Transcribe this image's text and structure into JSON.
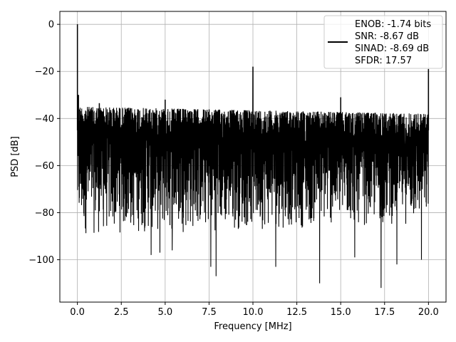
{
  "chart_data": {
    "type": "line",
    "title": "",
    "xlabel": "Frequency [MHz]",
    "ylabel": "PSD [dB]",
    "xlim": [
      -1,
      21
    ],
    "ylim": [
      -118,
      5.5
    ],
    "xticks": [
      0.0,
      2.5,
      5.0,
      7.5,
      10.0,
      12.5,
      15.0,
      17.5,
      20.0
    ],
    "xtick_labels": [
      "0.0",
      "2.5",
      "5.0",
      "7.5",
      "10.0",
      "12.5",
      "15.0",
      "17.5",
      "20.0"
    ],
    "yticks": [
      0,
      -20,
      -40,
      -60,
      -80,
      -100
    ],
    "ytick_labels": [
      "0",
      "−20",
      "−40",
      "−60",
      "−80",
      "−100"
    ],
    "grid": true,
    "legend_position": "top-right",
    "legend_lines": [
      "ENOB: -1.74 bits",
      "SNR: -8.67 dB",
      "SINAD: -8.69 dB",
      "SFDR: 17.57"
    ],
    "series_color": "#000000",
    "noise_floor": {
      "x_range": [
        0.0,
        20.0
      ],
      "upper_envelope": [
        -35,
        -38
      ],
      "lower_typical": [
        -90,
        -85
      ]
    },
    "peaks": [
      {
        "x": 0.0,
        "y": 0
      },
      {
        "x": 0.06,
        "y": -30
      },
      {
        "x": 1.25,
        "y": -33.5
      },
      {
        "x": 5.0,
        "y": -32
      },
      {
        "x": 10.0,
        "y": -18
      },
      {
        "x": 15.0,
        "y": -31
      },
      {
        "x": 17.5,
        "y": -38
      },
      {
        "x": 20.0,
        "y": -19
      }
    ],
    "dips": [
      {
        "x": 4.2,
        "y": -98
      },
      {
        "x": 4.7,
        "y": -97
      },
      {
        "x": 5.4,
        "y": -96
      },
      {
        "x": 7.6,
        "y": -103
      },
      {
        "x": 7.9,
        "y": -107
      },
      {
        "x": 11.3,
        "y": -103
      },
      {
        "x": 13.8,
        "y": -110
      },
      {
        "x": 15.8,
        "y": -99
      },
      {
        "x": 17.3,
        "y": -112
      },
      {
        "x": 18.2,
        "y": -102
      },
      {
        "x": 19.6,
        "y": -100
      }
    ]
  }
}
